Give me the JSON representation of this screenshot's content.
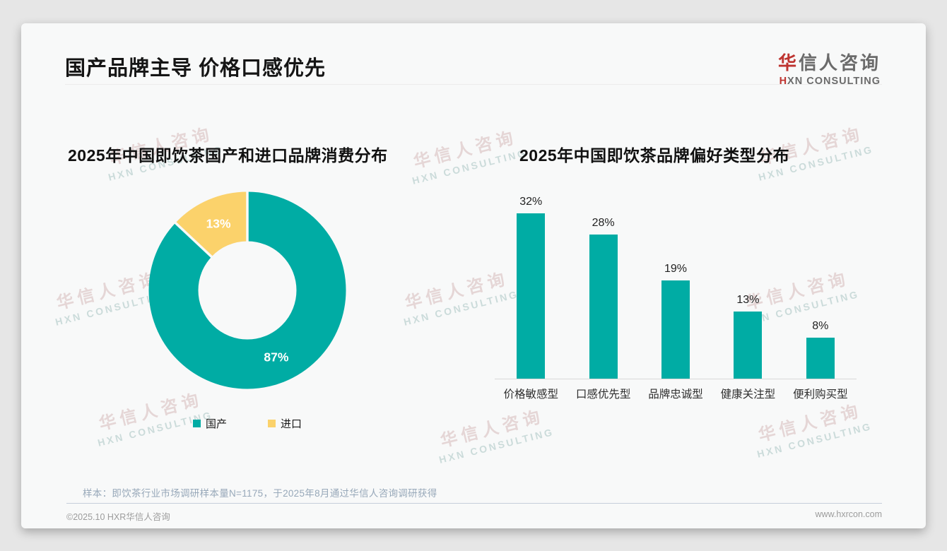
{
  "header": {
    "title": "国产品牌主导 价格口感优先"
  },
  "brand": {
    "logo_cn_accent": "华",
    "logo_cn_rest": "信人咨询",
    "logo_en_accent": "H",
    "logo_en_rest": "XN CONSULTING",
    "watermark_cn": "华信人咨询",
    "watermark_en": "HXN CONSULTING",
    "accent_red": "#be3430",
    "accent_teal": "#00aca4"
  },
  "chart_data": [
    {
      "type": "pie",
      "subtype": "donut",
      "title": "2025年中国即饮茶国产和进口品牌消费分布",
      "unit": "%",
      "start_angle_deg": 0,
      "direction": "clockwise",
      "legend_position": "bottom",
      "slices": [
        {
          "label": "国产",
          "value": 87,
          "color": "#00aca4"
        },
        {
          "label": "进口",
          "value": 13,
          "color": "#fbd26b"
        }
      ]
    },
    {
      "type": "bar",
      "title": "2025年中国即饮茶品牌偏好类型分布",
      "unit": "%",
      "bar_color": "#00aca4",
      "grid": false,
      "value_labels_position": "above",
      "categories": [
        "价格敏感型",
        "口感优先型",
        "品牌忠诚型",
        "健康关注型",
        "便利购买型"
      ],
      "values": [
        32,
        28,
        19,
        13,
        8
      ]
    }
  ],
  "footnote": "样本：即饮茶行业市场调研样本量N=1175，于2025年8月通过华信人咨询调研获得",
  "footer": {
    "copyright": "©2025.10 HXR华信人咨询",
    "website": "www.hxrcon.com"
  }
}
